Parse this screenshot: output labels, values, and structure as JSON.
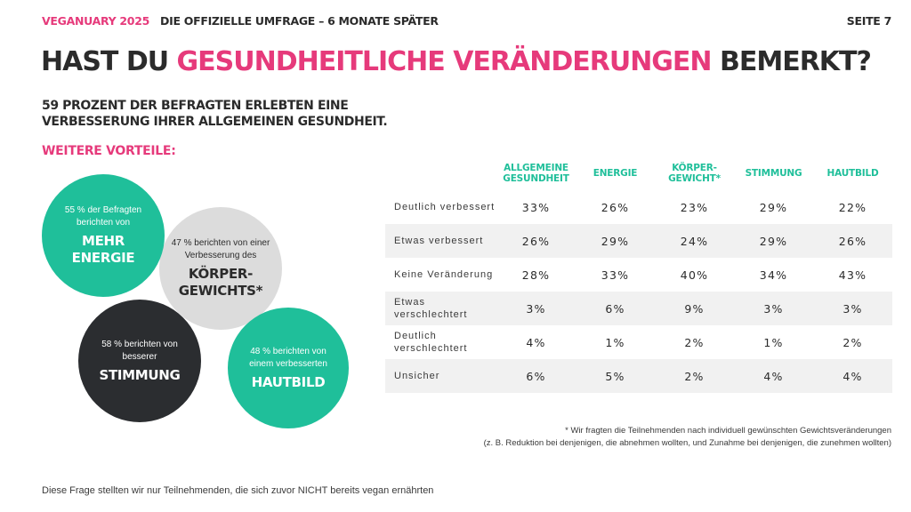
{
  "header": {
    "brand": "VEGANUARY 2025",
    "subtitle": "DIE OFFIZIELLE UMFRAGE – 6 MONATE SPÄTER",
    "page": "SEITE 7"
  },
  "title": {
    "before": "HAST DU ",
    "accent": "GESUNDHEITLICHE VERÄNDERUNGEN",
    "after": " BEMERKT?"
  },
  "lead": "59 PROZENT DER BEFRAGTEN ERLEBTEN EINE VERBESSERUNG IHRER ALLGEMEINEN GESUNDHEIT.",
  "more_heading": "WEITERE VORTEILE:",
  "circles": {
    "energie": {
      "small": "55 % der Befragten berichten von",
      "big": "MEHR ENERGIE",
      "color": "#1fbf9a"
    },
    "koerper": {
      "small": "47 % berichten von einer Verbesserung des",
      "big": "KÖRPER-GEWICHTS*",
      "color": "#dcdcdc"
    },
    "stimmung": {
      "small": "58 % berichten von besserer",
      "big": "STIMMUNG",
      "color": "#2b2d30"
    },
    "hautbild": {
      "small": "48 % berichten von einem verbesserten",
      "big": "HAUTBILD",
      "color": "#1fbf9a"
    }
  },
  "table": {
    "columns": [
      "ALLGEMEINE GESUNDHEIT",
      "ENERGIE",
      "KÖRPER-GEWICHT*",
      "STIMMUNG",
      "HAUTBILD"
    ],
    "rows": [
      {
        "label": "Deutlich verbessert",
        "values": [
          "33%",
          "26%",
          "23%",
          "29%",
          "22%"
        ]
      },
      {
        "label": "Etwas verbessert",
        "values": [
          "26%",
          "29%",
          "24%",
          "29%",
          "26%"
        ]
      },
      {
        "label": "Keine Veränderung",
        "values": [
          "28%",
          "33%",
          "40%",
          "34%",
          "43%"
        ]
      },
      {
        "label": "Etwas verschlechtert",
        "values": [
          "3%",
          "6%",
          "9%",
          "3%",
          "3%"
        ]
      },
      {
        "label": "Deutlich verschlechtert",
        "values": [
          "4%",
          "1%",
          "2%",
          "1%",
          "2%"
        ]
      },
      {
        "label": "Unsicher",
        "values": [
          "6%",
          "5%",
          "2%",
          "4%",
          "4%"
        ]
      }
    ]
  },
  "footnote": {
    "line1": "* Wir fragten die Teilnehmenden nach individuell gewünschten Gewichtsveränderungen",
    "line2": "(z. B. Reduktion bei denjenigen, die abnehmen wollten, und Zunahme bei denjenigen, die zunehmen wollten)"
  },
  "bottom_note": "Diese Frage stellten wir nur Teilnehmenden, die sich zuvor NICHT bereits vegan ernährten",
  "colors": {
    "accent_pink": "#e63a7b",
    "accent_green": "#1fbf9a",
    "dark": "#2b2b2b"
  }
}
